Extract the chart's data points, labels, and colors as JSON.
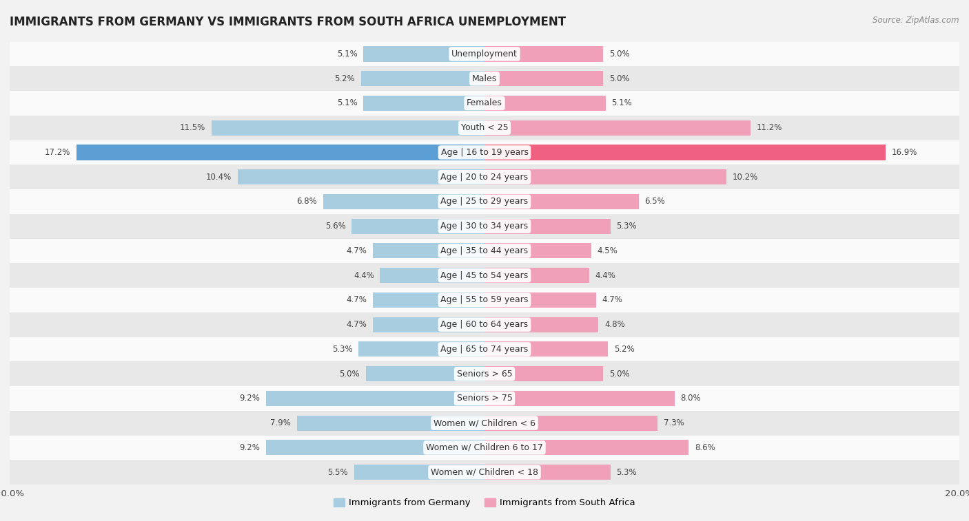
{
  "title": "IMMIGRANTS FROM GERMANY VS IMMIGRANTS FROM SOUTH AFRICA UNEMPLOYMENT",
  "source": "Source: ZipAtlas.com",
  "categories": [
    "Unemployment",
    "Males",
    "Females",
    "Youth < 25",
    "Age | 16 to 19 years",
    "Age | 20 to 24 years",
    "Age | 25 to 29 years",
    "Age | 30 to 34 years",
    "Age | 35 to 44 years",
    "Age | 45 to 54 years",
    "Age | 55 to 59 years",
    "Age | 60 to 64 years",
    "Age | 65 to 74 years",
    "Seniors > 65",
    "Seniors > 75",
    "Women w/ Children < 6",
    "Women w/ Children 6 to 17",
    "Women w/ Children < 18"
  ],
  "germany_values": [
    5.1,
    5.2,
    5.1,
    11.5,
    17.2,
    10.4,
    6.8,
    5.6,
    4.7,
    4.4,
    4.7,
    4.7,
    5.3,
    5.0,
    9.2,
    7.9,
    9.2,
    5.5
  ],
  "south_africa_values": [
    5.0,
    5.0,
    5.1,
    11.2,
    16.9,
    10.2,
    6.5,
    5.3,
    4.5,
    4.4,
    4.7,
    4.8,
    5.2,
    5.0,
    8.0,
    7.3,
    8.6,
    5.3
  ],
  "germany_color": "#a8cce0",
  "south_africa_color": "#f0a0b8",
  "germany_highlight_color": "#5b9fd4",
  "south_africa_highlight_color": "#f06080",
  "background_color": "#f2f2f2",
  "row_bg_light": "#fafafa",
  "row_bg_dark": "#e8e8e8",
  "xlim": 20.0,
  "title_fontsize": 12,
  "label_fontsize": 9,
  "value_fontsize": 8.5,
  "legend_labels": [
    "Immigrants from Germany",
    "Immigrants from South Africa"
  ]
}
